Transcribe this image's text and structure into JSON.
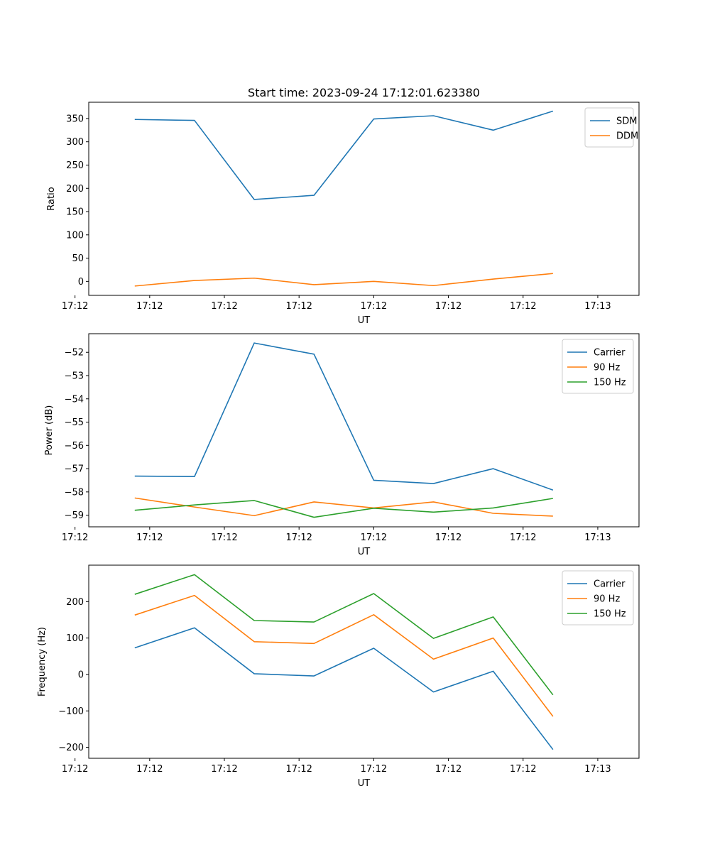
{
  "title": "Start time: 2023-09-24 17:12:01.623380",
  "chart_data": [
    {
      "type": "line",
      "xlabel": "UT",
      "ylabel": "Ratio",
      "x_tick_labels": [
        "17:12",
        "17:12",
        "17:12",
        "17:12",
        "17:12",
        "17:12",
        "17:12"
      ],
      "x_end_tick_label": "17:13",
      "x": [
        1,
        2,
        3,
        4,
        5,
        6,
        7,
        8
      ],
      "xlim": [
        0.23,
        9.44
      ],
      "ylim": [
        -30,
        385
      ],
      "yticks": [
        0,
        50,
        100,
        150,
        200,
        250,
        300,
        350
      ],
      "legend_position": "top-right",
      "series": [
        {
          "name": "SDM",
          "color": "#1f77b4",
          "values": [
            348,
            346,
            176,
            185,
            349,
            356,
            325,
            366
          ]
        },
        {
          "name": "DDM",
          "color": "#ff7f0e",
          "values": [
            -10,
            2,
            7,
            -7,
            0,
            -9,
            5,
            17
          ]
        }
      ]
    },
    {
      "type": "line",
      "xlabel": "UT",
      "ylabel": "Power (dB)",
      "x_tick_labels": [
        "17:12",
        "17:12",
        "17:12",
        "17:12",
        "17:12",
        "17:12",
        "17:12"
      ],
      "x_end_tick_label": "17:13",
      "x": [
        1,
        2,
        3,
        4,
        5,
        6,
        7,
        8
      ],
      "xlim": [
        0.23,
        9.44
      ],
      "ylim": [
        -59.5,
        -51.2
      ],
      "yticks": [
        -59,
        -58,
        -57,
        -56,
        -55,
        -54,
        -53,
        -52
      ],
      "legend_position": "top-right",
      "series": [
        {
          "name": "Carrier",
          "color": "#1f77b4",
          "values": [
            -57.32,
            -57.34,
            -51.6,
            -52.08,
            -57.5,
            -57.64,
            -57.0,
            -57.92
          ]
        },
        {
          "name": "90 Hz",
          "color": "#ff7f0e",
          "values": [
            -58.26,
            -58.65,
            -59.02,
            -58.43,
            -58.69,
            -58.43,
            -58.92,
            -59.04
          ]
        },
        {
          "name": "150 Hz",
          "color": "#2ca02c",
          "values": [
            -58.79,
            -58.56,
            -58.37,
            -59.09,
            -58.7,
            -58.87,
            -58.69,
            -58.28
          ]
        }
      ]
    },
    {
      "type": "line",
      "xlabel": "UT",
      "ylabel": "Frequency (Hz)",
      "x_tick_labels": [
        "17:12",
        "17:12",
        "17:12",
        "17:12",
        "17:12",
        "17:12",
        "17:12"
      ],
      "x_end_tick_label": "17:13",
      "x": [
        1,
        2,
        3,
        4,
        5,
        6,
        7,
        8
      ],
      "xlim": [
        0.23,
        9.44
      ],
      "ylim": [
        -230,
        300
      ],
      "yticks": [
        -200,
        -100,
        0,
        100,
        200
      ],
      "legend_position": "top-right",
      "series": [
        {
          "name": "Carrier",
          "color": "#1f77b4",
          "values": [
            73,
            128,
            2,
            -4,
            72,
            -48,
            9,
            -206
          ]
        },
        {
          "name": "90 Hz",
          "color": "#ff7f0e",
          "values": [
            163,
            217,
            90,
            85,
            164,
            42,
            100,
            -115
          ]
        },
        {
          "name": "150 Hz",
          "color": "#2ca02c",
          "values": [
            220,
            274,
            148,
            144,
            222,
            99,
            158,
            -56
          ]
        }
      ]
    }
  ]
}
